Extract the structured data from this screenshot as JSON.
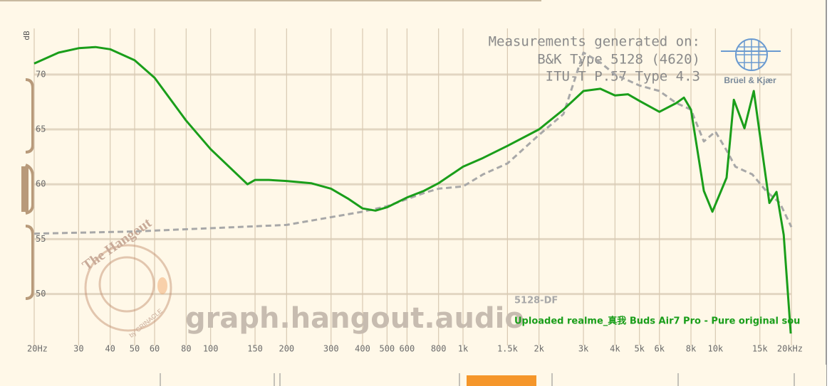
{
  "chart_data": {
    "type": "line",
    "ylabel": "dB",
    "xscale": "log",
    "grid": true,
    "legend": "lower right",
    "xlim": [
      20,
      20000
    ],
    "ylim": [
      45.7,
      74.2
    ],
    "xticks": [
      {
        "value": 20,
        "label": "20Hz"
      },
      30,
      40,
      50,
      60,
      80,
      100,
      150,
      200,
      300,
      400,
      500,
      600,
      800,
      {
        "value": 1000,
        "label": "1k"
      },
      {
        "value": 1500,
        "label": "1.5k"
      },
      {
        "value": 2000,
        "label": "2k"
      },
      {
        "value": 3000,
        "label": "3k"
      },
      {
        "value": 4000,
        "label": "4k"
      },
      {
        "value": 5000,
        "label": "5k"
      },
      {
        "value": 6000,
        "label": "6k"
      },
      {
        "value": 8000,
        "label": "8k"
      },
      {
        "value": 10000,
        "label": "10k"
      },
      {
        "value": 15000,
        "label": "15k"
      },
      {
        "value": 20000,
        "label": "20kHz"
      }
    ],
    "yticks": [
      50,
      55,
      60,
      65,
      70
    ],
    "annotations": [
      "Measurements generated on:",
      "B&K Type 5128 (4620)",
      "ITU-T P.57 Type 4.3",
      "Brüel & Kjær",
      "graph.hangout.audio",
      "The Hangout",
      "by CRINACLE"
    ],
    "series": [
      {
        "name": "5128-DF",
        "color": "#a8a8a8",
        "dashed": true,
        "x": [
          20,
          50,
          100,
          200,
          300,
          400,
          500,
          700,
          800,
          1000,
          1200,
          1500,
          2000,
          2500,
          3000,
          3500,
          4000,
          5000,
          6000,
          7000,
          8000,
          9000,
          10000,
          11000,
          12000,
          14000,
          16000,
          18000,
          20000
        ],
        "values": [
          55.5,
          55.7,
          56.0,
          56.3,
          57.0,
          57.5,
          58.0,
          59.2,
          59.6,
          59.8,
          60.9,
          61.9,
          64.5,
          66.4,
          72.0,
          71.1,
          70.0,
          69.0,
          68.5,
          67.4,
          66.8,
          63.9,
          64.8,
          63.2,
          61.6,
          60.9,
          59.3,
          58.3,
          56.1
        ]
      },
      {
        "name": "Uploaded realme_真我 Buds Air7 Pro - Pure original sou",
        "color": "#1a9e1a",
        "dashed": false,
        "x": [
          20,
          25,
          30,
          35,
          40,
          50,
          60,
          80,
          100,
          140,
          150,
          170,
          200,
          250,
          300,
          350,
          400,
          450,
          500,
          600,
          700,
          800,
          1000,
          1200,
          1500,
          2000,
          2500,
          3000,
          3500,
          4000,
          4500,
          5000,
          6000,
          7000,
          7500,
          8000,
          9000,
          9730,
          11070,
          11830,
          13030,
          14190,
          16360,
          17460,
          18640,
          19880
        ],
        "values": [
          71.0,
          72.0,
          72.4,
          72.5,
          72.3,
          71.3,
          69.7,
          65.8,
          63.2,
          60.0,
          60.4,
          60.4,
          60.3,
          60.1,
          59.6,
          58.7,
          57.8,
          57.6,
          57.9,
          58.8,
          59.4,
          60.1,
          61.6,
          62.4,
          63.5,
          65.0,
          66.8,
          68.5,
          68.7,
          68.1,
          68.2,
          67.6,
          66.6,
          67.4,
          67.9,
          66.8,
          59.4,
          57.5,
          60.6,
          67.7,
          65.1,
          68.5,
          58.3,
          59.3,
          55.4,
          46.4
        ]
      }
    ]
  }
}
